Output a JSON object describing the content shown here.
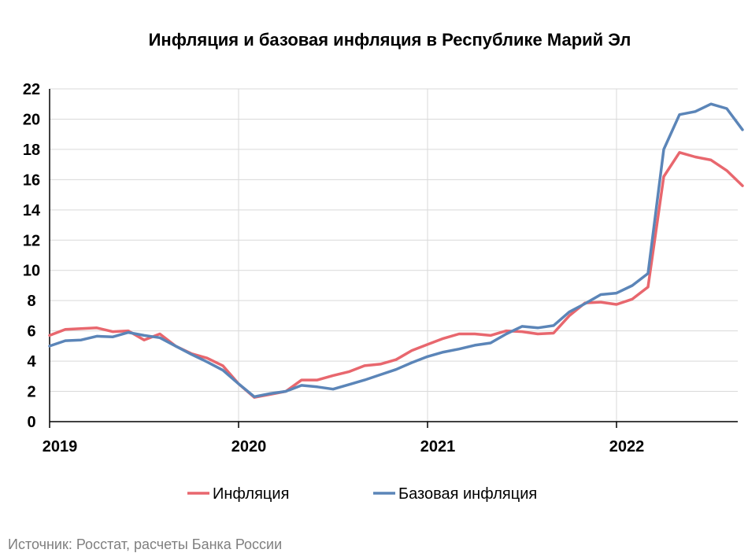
{
  "chart_data": {
    "type": "line",
    "title": "Инфляция и базовая инфляция в Республике Марий Эл",
    "xlabel": "",
    "ylabel": "",
    "ylim": [
      0,
      22
    ],
    "yticks": [
      "0",
      "2",
      "4",
      "6",
      "8",
      "10",
      "12",
      "14",
      "16",
      "18",
      "20",
      "22"
    ],
    "xticks": [
      "2019",
      "2020",
      "2021",
      "2022"
    ],
    "grid": true,
    "legend_position": "bottom",
    "x": [
      "2019-01",
      "2019-02",
      "2019-03",
      "2019-04",
      "2019-05",
      "2019-06",
      "2019-07",
      "2019-08",
      "2019-09",
      "2019-10",
      "2019-11",
      "2019-12",
      "2020-01",
      "2020-02",
      "2020-03",
      "2020-04",
      "2020-05",
      "2020-06",
      "2020-07",
      "2020-08",
      "2020-09",
      "2020-10",
      "2020-11",
      "2020-12",
      "2021-01",
      "2021-02",
      "2021-03",
      "2021-04",
      "2021-05",
      "2021-06",
      "2021-07",
      "2021-08",
      "2021-09",
      "2021-10",
      "2021-11",
      "2021-12",
      "2022-01",
      "2022-02",
      "2022-03",
      "2022-04",
      "2022-05",
      "2022-06",
      "2022-07",
      "2022-08",
      "2022-09"
    ],
    "series": [
      {
        "name": "Инфляция",
        "color": "#e8676e",
        "values": [
          5.7,
          6.1,
          6.15,
          6.2,
          5.95,
          6.0,
          5.4,
          5.8,
          5.0,
          4.5,
          4.2,
          3.7,
          2.5,
          1.6,
          1.8,
          2.0,
          2.75,
          2.75,
          3.05,
          3.3,
          3.7,
          3.8,
          4.1,
          4.7,
          5.1,
          5.5,
          5.8,
          5.8,
          5.7,
          6.0,
          5.95,
          5.8,
          5.85,
          7.0,
          7.85,
          7.9,
          7.75,
          8.1,
          8.9,
          16.2,
          17.8,
          17.5,
          17.3,
          16.6,
          15.6
        ]
      },
      {
        "name": "Базовая инфляция",
        "color": "#5b85b8",
        "values": [
          5.0,
          5.35,
          5.4,
          5.65,
          5.6,
          5.9,
          5.7,
          5.55,
          5.0,
          4.45,
          3.95,
          3.4,
          2.5,
          1.65,
          1.85,
          2.0,
          2.4,
          2.3,
          2.15,
          2.45,
          2.75,
          3.1,
          3.45,
          3.9,
          4.3,
          4.6,
          4.8,
          5.05,
          5.2,
          5.8,
          6.3,
          6.2,
          6.35,
          7.25,
          7.8,
          8.4,
          8.5,
          9.0,
          9.8,
          18.0,
          20.3,
          20.5,
          21.0,
          20.7,
          19.3
        ]
      }
    ]
  },
  "source_note": "Источник: Росстат, расчеты Банка России"
}
